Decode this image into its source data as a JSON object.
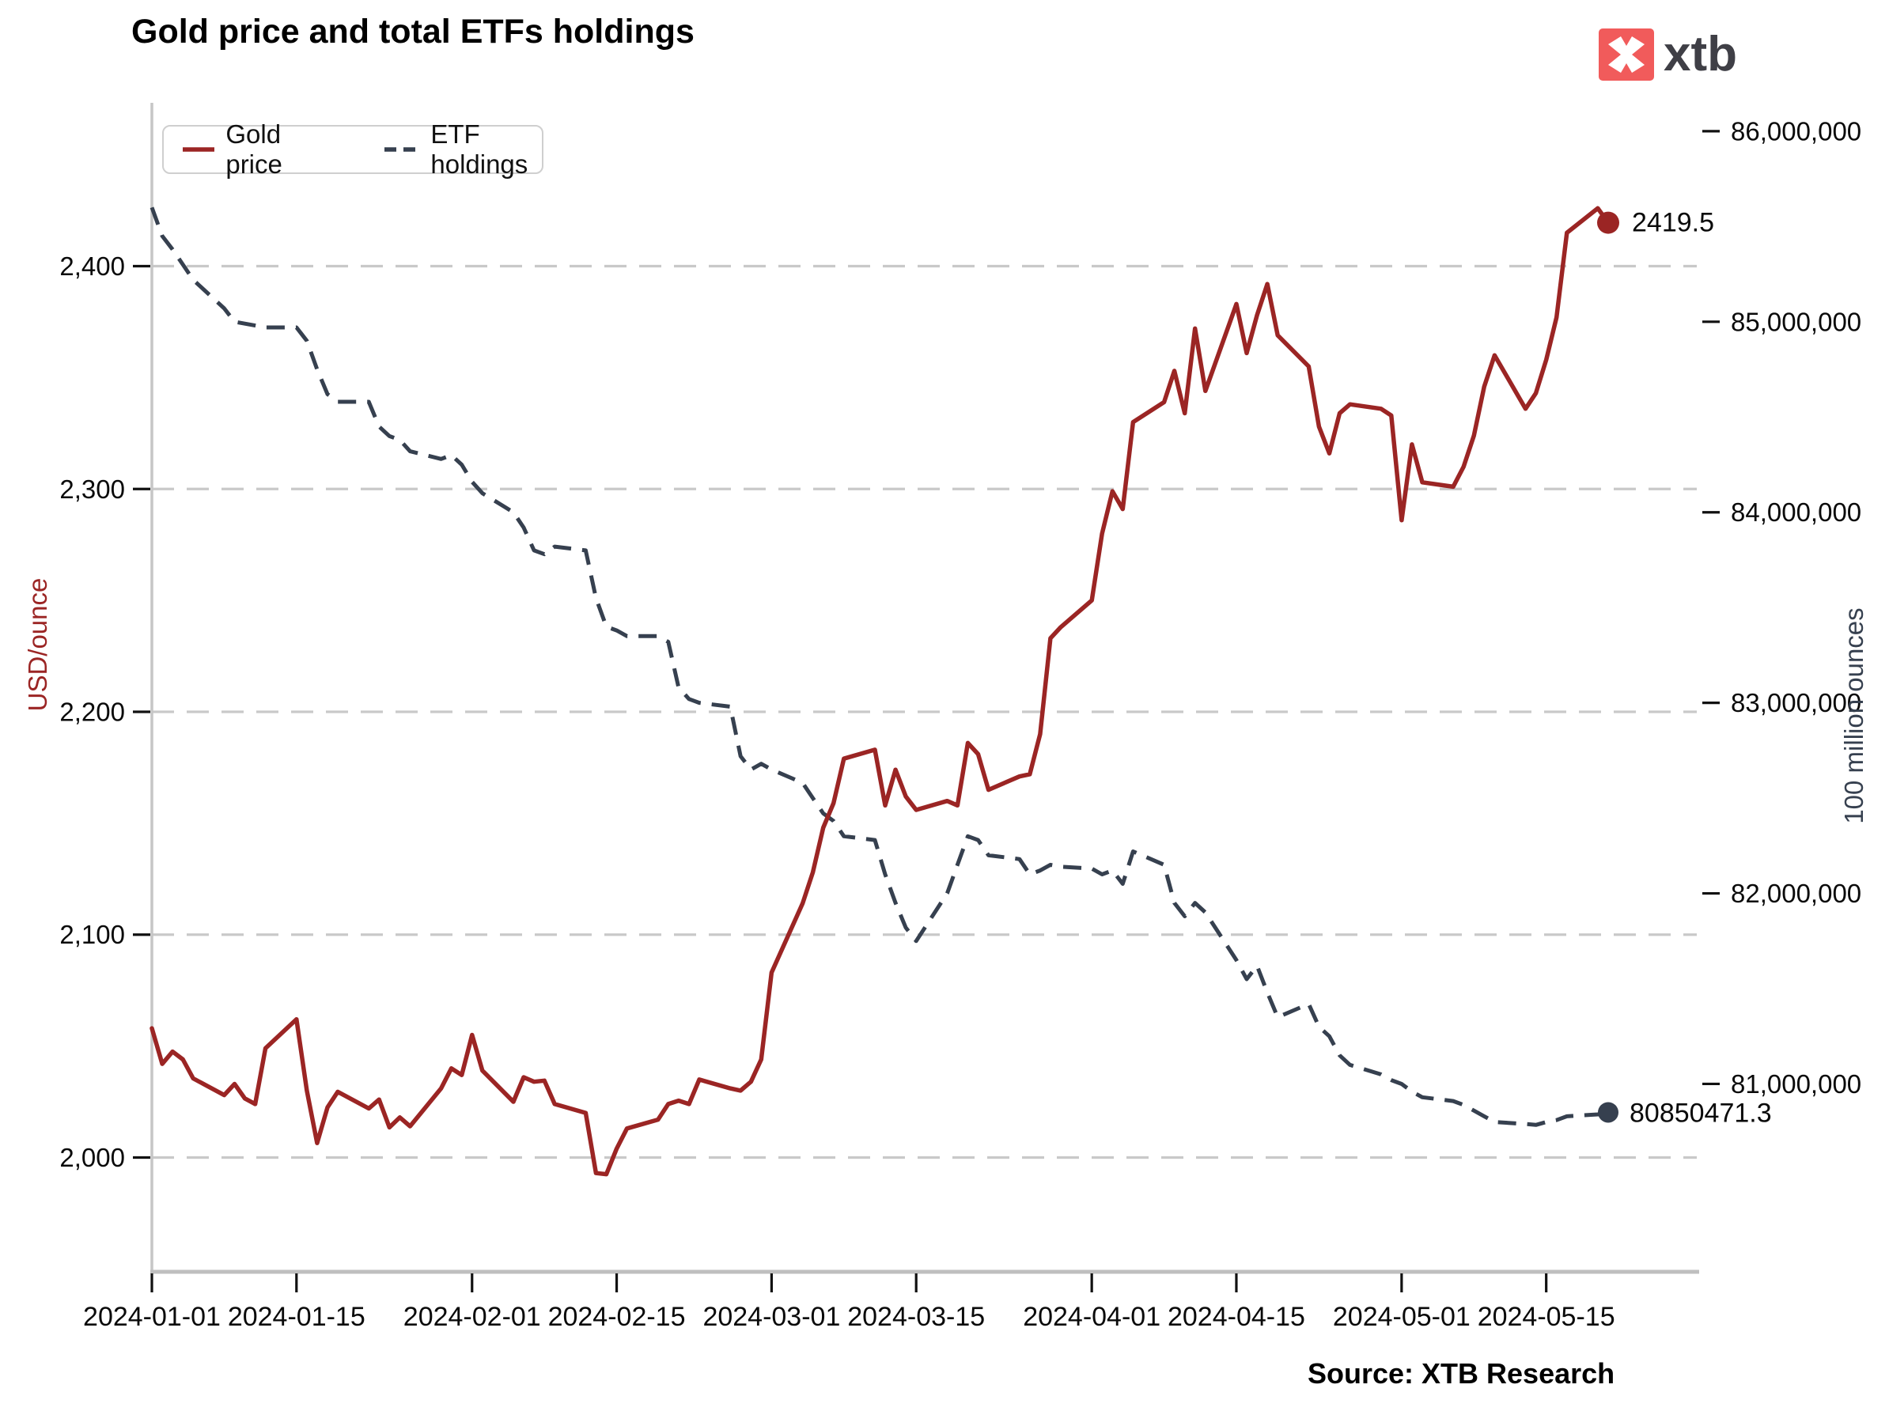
{
  "header": {
    "title": "Gold price and total ETFs holdings",
    "brand": "xtb"
  },
  "legend": {
    "gold": "Gold price",
    "etf": "ETF holdings"
  },
  "axes": {
    "left_title": "USD/ounce",
    "right_title": "100 million ounces"
  },
  "annotations": {
    "gold_last": "2419.5",
    "etf_last": "80850471.3"
  },
  "footer": {
    "source": "Source: XTB Research"
  },
  "colors": {
    "gold_line": "#9B2524",
    "etf_line": "#36404F",
    "gridline": "#C9C9C9",
    "spine": "#C6C6C6",
    "bottom_spine": "#BFBFBF",
    "tick_text": "#0A0A0A",
    "logo_red": "#F15B5B",
    "logo_text": "#3F3F46"
  },
  "chart_data": {
    "type": "line",
    "title": "Gold price and total ETFs holdings",
    "legend_position": "top-left",
    "grid": "horizontal dashed gridlines at left-axis tick levels only",
    "y_left": {
      "label": "USD/ounce",
      "range": [
        1948.7,
        2473.3
      ],
      "ticks": [
        {
          "v": 2000,
          "label": "2,000"
        },
        {
          "v": 2100,
          "label": "2,100"
        },
        {
          "v": 2200,
          "label": "2,200"
        },
        {
          "v": 2300,
          "label": "2,300"
        },
        {
          "v": 2400,
          "label": "2,400"
        }
      ]
    },
    "y_right": {
      "label": "100 million ounces",
      "range_millions": [
        80.014,
        86.149
      ],
      "ticks": [
        {
          "v": 81,
          "label": "81,000,000"
        },
        {
          "v": 82,
          "label": "82,000,000"
        },
        {
          "v": 83,
          "label": "83,000,000"
        },
        {
          "v": 84,
          "label": "84,000,000"
        },
        {
          "v": 85,
          "label": "85,000,000"
        },
        {
          "v": 86,
          "label": "86,000,000"
        }
      ]
    },
    "x_ticks": [
      {
        "date": "2024-01-01",
        "label": "2024-01-01"
      },
      {
        "date": "2024-01-15",
        "label": "2024-01-15"
      },
      {
        "date": "2024-02-01",
        "label": "2024-02-01"
      },
      {
        "date": "2024-02-15",
        "label": "2024-02-15"
      },
      {
        "date": "2024-03-01",
        "label": "2024-03-01"
      },
      {
        "date": "2024-03-15",
        "label": "2024-03-15"
      },
      {
        "date": "2024-04-01",
        "label": "2024-04-01"
      },
      {
        "date": "2024-04-15",
        "label": "2024-04-15"
      },
      {
        "date": "2024-05-01",
        "label": "2024-05-01"
      },
      {
        "date": "2024-05-15",
        "label": "2024-05-15"
      }
    ],
    "x": [
      "2024-01-01",
      "2024-01-02",
      "2024-01-03",
      "2024-01-04",
      "2024-01-05",
      "2024-01-08",
      "2024-01-09",
      "2024-01-10",
      "2024-01-11",
      "2024-01-12",
      "2024-01-15",
      "2024-01-16",
      "2024-01-17",
      "2024-01-18",
      "2024-01-19",
      "2024-01-22",
      "2024-01-23",
      "2024-01-24",
      "2024-01-25",
      "2024-01-26",
      "2024-01-29",
      "2024-01-30",
      "2024-01-31",
      "2024-02-01",
      "2024-02-02",
      "2024-02-05",
      "2024-02-06",
      "2024-02-07",
      "2024-02-08",
      "2024-02-09",
      "2024-02-12",
      "2024-02-13",
      "2024-02-14",
      "2024-02-15",
      "2024-02-16",
      "2024-02-19",
      "2024-02-20",
      "2024-02-21",
      "2024-02-22",
      "2024-02-23",
      "2024-02-26",
      "2024-02-27",
      "2024-02-28",
      "2024-02-29",
      "2024-03-01",
      "2024-03-04",
      "2024-03-05",
      "2024-03-06",
      "2024-03-07",
      "2024-03-08",
      "2024-03-11",
      "2024-03-12",
      "2024-03-13",
      "2024-03-14",
      "2024-03-15",
      "2024-03-18",
      "2024-03-19",
      "2024-03-20",
      "2024-03-21",
      "2024-03-22",
      "2024-03-25",
      "2024-03-26",
      "2024-03-27",
      "2024-03-28",
      "2024-03-29",
      "2024-04-01",
      "2024-04-02",
      "2024-04-03",
      "2024-04-04",
      "2024-04-05",
      "2024-04-08",
      "2024-04-09",
      "2024-04-10",
      "2024-04-11",
      "2024-04-12",
      "2024-04-15",
      "2024-04-16",
      "2024-04-17",
      "2024-04-18",
      "2024-04-19",
      "2024-04-22",
      "2024-04-23",
      "2024-04-24",
      "2024-04-25",
      "2024-04-26",
      "2024-04-29",
      "2024-04-30",
      "2024-05-01",
      "2024-05-02",
      "2024-05-03",
      "2024-05-06",
      "2024-05-07",
      "2024-05-08",
      "2024-05-09",
      "2024-05-10",
      "2024-05-13",
      "2024-05-14",
      "2024-05-15",
      "2024-05-16",
      "2024-05-17",
      "2024-05-20",
      "2024-05-21"
    ],
    "series": [
      {
        "name": "Gold price",
        "axis": "left",
        "style": "solid",
        "color": "#9B2524",
        "last_value": 2419.5,
        "values": [
          2058,
          2042,
          2047.5,
          2044,
          2035.5,
          2028,
          2033,
          2026.5,
          2024,
          2049,
          2062,
          2030,
          2006.5,
          2022.5,
          2029.5,
          2022,
          2026,
          2013.5,
          2018,
          2014,
          2031,
          2040,
          2037,
          2055,
          2039,
          2025,
          2036,
          2034,
          2034.5,
          2024,
          2020,
          1993,
          1992.5,
          2004,
          2013,
          2017,
          2024,
          2025.5,
          2024,
          2035,
          2031,
          2030,
          2034,
          2044,
          2083,
          2114,
          2128,
          2148,
          2159,
          2179,
          2183,
          2158,
          2174,
          2162,
          2156,
          2160,
          2158,
          2186,
          2181,
          2165,
          2171,
          2172,
          2190,
          2233,
          2238,
          2250,
          2280,
          2299,
          2291,
          2330,
          2339,
          2353,
          2334,
          2372,
          2344,
          2383,
          2361,
          2378,
          2392,
          2369,
          2355,
          2328,
          2316,
          2334,
          2338,
          2336,
          2333,
          2286,
          2320,
          2303,
          2301,
          2310,
          2324,
          2346,
          2360,
          2336,
          2343,
          2358,
          2377,
          2415,
          2426,
          2419.5
        ]
      },
      {
        "name": "ETF holdings",
        "axis": "right",
        "style": "dashed",
        "color": "#36404F",
        "last_value": 80850471.3,
        "values_millions": [
          85.6,
          85.45,
          85.38,
          85.3,
          85.22,
          85.07,
          85.0,
          84.99,
          84.98,
          84.97,
          84.97,
          84.9,
          84.75,
          84.62,
          84.58,
          84.58,
          84.45,
          84.4,
          84.38,
          84.32,
          84.28,
          84.3,
          84.25,
          84.16,
          84.1,
          84.0,
          83.92,
          83.8,
          83.78,
          83.82,
          83.8,
          83.55,
          83.4,
          83.38,
          83.35,
          83.35,
          83.32,
          83.08,
          83.02,
          83.0,
          82.98,
          82.72,
          82.65,
          82.68,
          82.65,
          82.58,
          82.5,
          82.42,
          82.38,
          82.3,
          82.28,
          82.1,
          81.95,
          81.82,
          81.75,
          82.0,
          82.15,
          82.3,
          82.28,
          82.2,
          82.18,
          82.1,
          82.12,
          82.15,
          82.14,
          82.13,
          82.1,
          82.12,
          82.05,
          82.22,
          82.15,
          81.95,
          81.88,
          81.95,
          81.9,
          81.65,
          81.55,
          81.62,
          81.48,
          81.35,
          81.42,
          81.3,
          81.25,
          81.15,
          81.1,
          81.05,
          81.02,
          81.0,
          80.96,
          80.93,
          80.91,
          80.89,
          80.86,
          80.83,
          80.8,
          80.79,
          80.785,
          80.8,
          80.81,
          80.83,
          80.84,
          80.8504713
        ]
      }
    ]
  }
}
